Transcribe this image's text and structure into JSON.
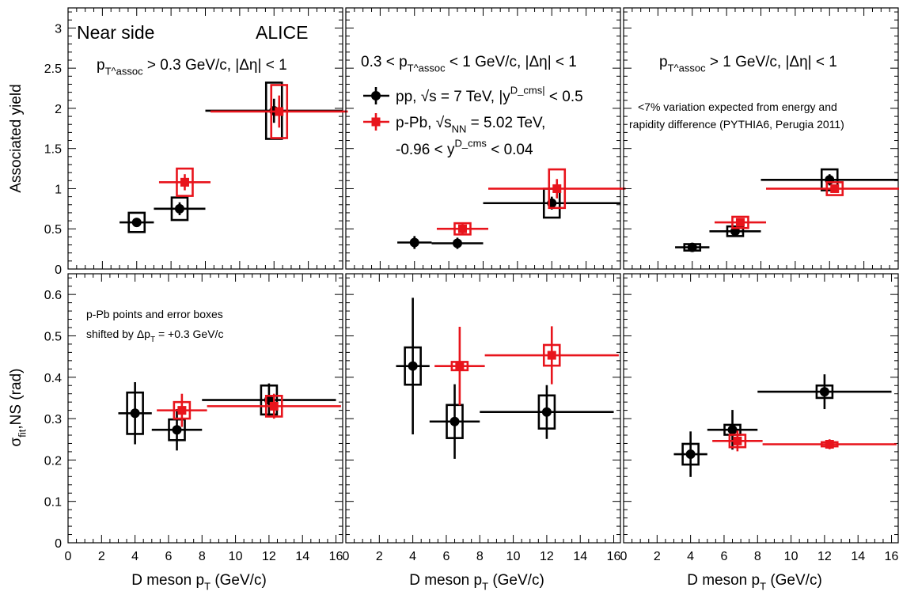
{
  "figure": {
    "experiment_label": "ALICE",
    "region_label": "Near side",
    "x_axis_label": "D meson p_T (GeV/c)",
    "top_y_axis_label": "Associated yield",
    "bottom_y_axis_label": "σ_fit,NS (rad)",
    "columns": [
      "p_T^assoc > 0.3 GeV/c, |Δη| < 1",
      "0.3 < p_T^assoc < 1 GeV/c, |Δη| < 1",
      "p_T^assoc > 1 GeV/c, |Δη| < 1"
    ],
    "legend": {
      "pp": "pp, √s = 7 TeV, |y^D_cms| < 0.5",
      "ppb_line1": "p-Pb, √s_NN = 5.02 TeV,",
      "ppb_line2": "-0.96 < y^D_cms < 0.04"
    },
    "note_pythia_line1": "<7% variation expected from energy and",
    "note_pythia_line2": "rapidity difference (PYTHIA6, Perugia 2011)",
    "note_shift_line1": "p-Pb points and error boxes",
    "note_shift_line2": "shifted by Δp_T = +0.3 GeV/c",
    "colors": {
      "pp": "#000000",
      "ppb": "#e8141c"
    }
  },
  "chart_data": [
    {
      "type": "scatter",
      "panel": "top-left",
      "xlabel": "",
      "ylabel": "Associated yield",
      "xlim": [
        0,
        16
      ],
      "ylim": [
        0,
        3.25
      ],
      "xticks": [],
      "yticks": [
        0,
        0.5,
        1,
        1.5,
        2,
        2.5,
        3
      ],
      "series": [
        {
          "name": "pp",
          "points": [
            {
              "x": 4,
              "xlo": 3,
              "xhi": 5,
              "y": 0.58,
              "elo": 0.05,
              "ehi": 0.05,
              "sys": 0.12
            },
            {
              "x": 6.5,
              "xlo": 5,
              "xhi": 8,
              "y": 0.75,
              "elo": 0.08,
              "ehi": 0.08,
              "sys": 0.14
            },
            {
              "x": 12,
              "xlo": 8,
              "xhi": 16,
              "y": 1.97,
              "elo": 0.15,
              "ehi": 0.15,
              "sys": 0.35
            }
          ]
        },
        {
          "name": "p-Pb",
          "points": [
            {
              "x": 6.8,
              "xlo": 5.3,
              "xhi": 8.3,
              "y": 1.08,
              "elo": 0.1,
              "ehi": 0.1,
              "sys": 0.17
            },
            {
              "x": 12.3,
              "xlo": 8.3,
              "xhi": 16.3,
              "y": 1.96,
              "elo": 0.2,
              "ehi": 0.2,
              "sys": 0.33
            }
          ]
        }
      ]
    },
    {
      "type": "scatter",
      "panel": "top-middle",
      "xlabel": "",
      "ylabel": "",
      "xlim": [
        0,
        16
      ],
      "ylim": [
        0,
        3.25
      ],
      "xticks": [],
      "yticks": [],
      "series": [
        {
          "name": "pp",
          "points": [
            {
              "x": 4,
              "xlo": 3,
              "xhi": 5,
              "y": 0.33,
              "elo": 0.08,
              "ehi": 0.08,
              "sys": 0
            },
            {
              "x": 6.5,
              "xlo": 5,
              "xhi": 8,
              "y": 0.32,
              "elo": 0.07,
              "ehi": 0.07,
              "sys": 0
            },
            {
              "x": 12,
              "xlo": 8,
              "xhi": 16,
              "y": 0.82,
              "elo": 0.08,
              "ehi": 0.08,
              "sys": 0.18
            }
          ]
        },
        {
          "name": "p-Pb",
          "points": [
            {
              "x": 6.8,
              "xlo": 5.3,
              "xhi": 8.3,
              "y": 0.5,
              "elo": 0.06,
              "ehi": 0.06,
              "sys": 0.07
            },
            {
              "x": 12.3,
              "xlo": 8.3,
              "xhi": 16.3,
              "y": 1.0,
              "elo": 0.12,
              "ehi": 0.12,
              "sys": 0.24
            }
          ]
        }
      ]
    },
    {
      "type": "scatter",
      "panel": "top-right",
      "xlabel": "",
      "ylabel": "",
      "xlim": [
        0,
        16
      ],
      "ylim": [
        0,
        3.25
      ],
      "xticks": [],
      "yticks": [],
      "series": [
        {
          "name": "pp",
          "points": [
            {
              "x": 4,
              "xlo": 3,
              "xhi": 5,
              "y": 0.27,
              "elo": 0.03,
              "ehi": 0.03,
              "sys": 0.04
            },
            {
              "x": 6.5,
              "xlo": 5,
              "xhi": 8,
              "y": 0.47,
              "elo": 0.04,
              "ehi": 0.04,
              "sys": 0.06
            },
            {
              "x": 12,
              "xlo": 8,
              "xhi": 16,
              "y": 1.11,
              "elo": 0.07,
              "ehi": 0.07,
              "sys": 0.13
            }
          ]
        },
        {
          "name": "p-Pb",
          "points": [
            {
              "x": 6.8,
              "xlo": 5.3,
              "xhi": 8.3,
              "y": 0.58,
              "elo": 0.04,
              "ehi": 0.04,
              "sys": 0.07
            },
            {
              "x": 12.3,
              "xlo": 8.3,
              "xhi": 16.3,
              "y": 1.0,
              "elo": 0.05,
              "ehi": 0.05,
              "sys": 0.08
            }
          ]
        }
      ]
    },
    {
      "type": "scatter",
      "panel": "bottom-left",
      "xlabel": "D meson p_T (GeV/c)",
      "ylabel": "σ_fit,NS (rad)",
      "xlim": [
        0,
        16.4
      ],
      "ylim": [
        0,
        0.65
      ],
      "xticks": [
        0,
        2,
        4,
        6,
        8,
        10,
        12,
        14,
        16
      ],
      "yticks": [
        0,
        0.1,
        0.2,
        0.3,
        0.4,
        0.5,
        0.6
      ],
      "series": [
        {
          "name": "pp",
          "points": [
            {
              "x": 4,
              "xlo": 3,
              "xhi": 5,
              "y": 0.313,
              "elo": 0.075,
              "ehi": 0.075,
              "sys": 0.05
            },
            {
              "x": 6.5,
              "xlo": 5,
              "xhi": 8,
              "y": 0.273,
              "elo": 0.05,
              "ehi": 0.05,
              "sys": 0.025
            },
            {
              "x": 12,
              "xlo": 8,
              "xhi": 16,
              "y": 0.345,
              "elo": 0.04,
              "ehi": 0.04,
              "sys": 0.035
            }
          ]
        },
        {
          "name": "p-Pb",
          "points": [
            {
              "x": 6.8,
              "xlo": 5.3,
              "xhi": 8.3,
              "y": 0.32,
              "elo": 0.04,
              "ehi": 0.04,
              "sys": 0.02
            },
            {
              "x": 12.3,
              "xlo": 8.3,
              "xhi": 16.3,
              "y": 0.33,
              "elo": 0.03,
              "ehi": 0.03,
              "sys": 0.025
            }
          ]
        }
      ]
    },
    {
      "type": "scatter",
      "panel": "bottom-middle",
      "xlabel": "D meson p_T (GeV/c)",
      "ylabel": "",
      "xlim": [
        0,
        16.4
      ],
      "ylim": [
        0,
        0.65
      ],
      "xticks": [
        0,
        2,
        4,
        6,
        8,
        10,
        12,
        14,
        16
      ],
      "yticks": [],
      "series": [
        {
          "name": "pp",
          "points": [
            {
              "x": 4,
              "xlo": 3,
              "xhi": 5,
              "y": 0.427,
              "elo": 0.165,
              "ehi": 0.165,
              "sys": 0.045
            },
            {
              "x": 6.5,
              "xlo": 5,
              "xhi": 8,
              "y": 0.293,
              "elo": 0.09,
              "ehi": 0.09,
              "sys": 0.04
            },
            {
              "x": 12,
              "xlo": 8,
              "xhi": 16,
              "y": 0.316,
              "elo": 0.065,
              "ehi": 0.065,
              "sys": 0.04
            }
          ]
        },
        {
          "name": "p-Pb",
          "points": [
            {
              "x": 6.8,
              "xlo": 5.3,
              "xhi": 8.3,
              "y": 0.427,
              "elo": 0.095,
              "ehi": 0.095,
              "sys": 0.01
            },
            {
              "x": 12.3,
              "xlo": 8.3,
              "xhi": 16.3,
              "y": 0.453,
              "elo": 0.07,
              "ehi": 0.07,
              "sys": 0.025
            }
          ]
        }
      ]
    },
    {
      "type": "scatter",
      "panel": "bottom-right",
      "xlabel": "D meson p_T (GeV/c)",
      "ylabel": "",
      "xlim": [
        0,
        16.4
      ],
      "ylim": [
        0,
        0.65
      ],
      "xticks": [
        0,
        2,
        4,
        6,
        8,
        10,
        12,
        14,
        16
      ],
      "yticks": [],
      "series": [
        {
          "name": "pp",
          "points": [
            {
              "x": 4,
              "xlo": 3,
              "xhi": 5,
              "y": 0.214,
              "elo": 0.055,
              "ehi": 0.055,
              "sys": 0.025
            },
            {
              "x": 6.5,
              "xlo": 5,
              "xhi": 8,
              "y": 0.273,
              "elo": 0.048,
              "ehi": 0.048,
              "sys": 0.012
            },
            {
              "x": 12,
              "xlo": 8,
              "xhi": 16,
              "y": 0.365,
              "elo": 0.042,
              "ehi": 0.042,
              "sys": 0.015
            }
          ]
        },
        {
          "name": "p-Pb",
          "points": [
            {
              "x": 6.8,
              "xlo": 5.3,
              "xhi": 8.3,
              "y": 0.246,
              "elo": 0.025,
              "ehi": 0.025,
              "sys": 0.015
            },
            {
              "x": 12.3,
              "xlo": 8.3,
              "xhi": 16.3,
              "y": 0.238,
              "elo": 0.012,
              "ehi": 0.012,
              "sys": 0.005
            }
          ]
        }
      ]
    }
  ]
}
